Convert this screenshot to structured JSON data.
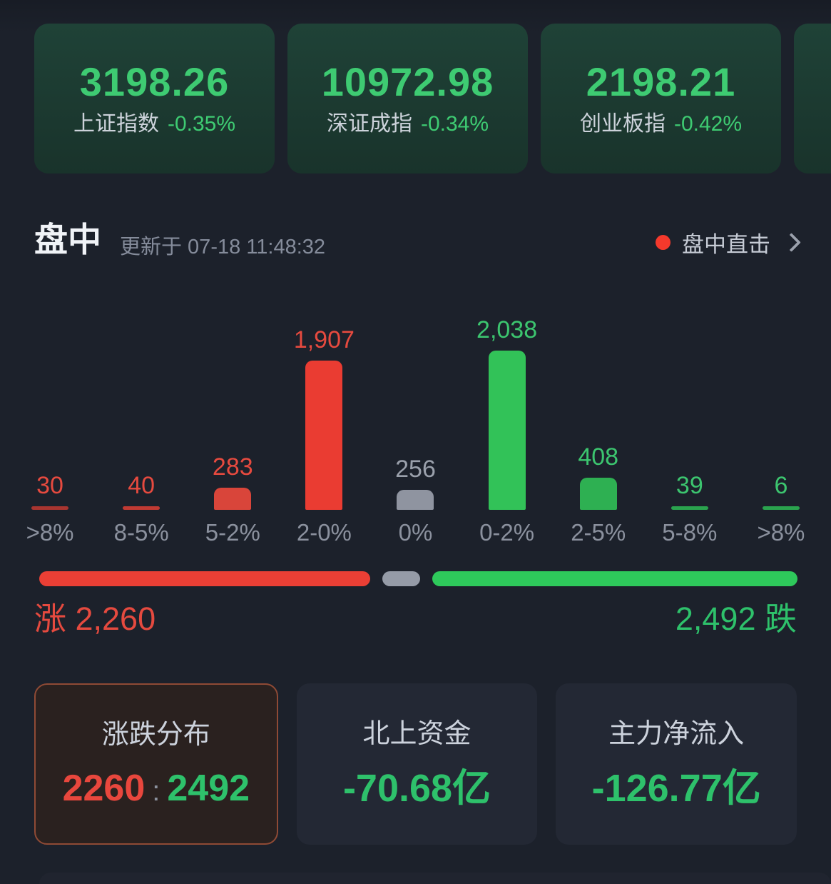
{
  "indices": {
    "cards": [
      {
        "value": "3198.26",
        "name": "上证指数",
        "change": "-0.35%"
      },
      {
        "value": "10972.98",
        "name": "深证成指",
        "change": "-0.34%"
      },
      {
        "value": "2198.21",
        "name": "创业板指",
        "change": "-0.42%"
      }
    ]
  },
  "section": {
    "title": "盘中",
    "updated": "更新于 07-18 11:48:32",
    "live_link": "盘中直击"
  },
  "chart_data": {
    "type": "bar",
    "title": "涨跌分布",
    "categories": [
      ">8%",
      "8-5%",
      "5-2%",
      "2-0%",
      "0%",
      "0-2%",
      "2-5%",
      "5-8%",
      ">8%"
    ],
    "values": [
      30,
      40,
      283,
      1907,
      256,
      2038,
      408,
      39,
      6
    ],
    "value_labels": [
      "30",
      "40",
      "283",
      "1,907",
      "256",
      "2,038",
      "408",
      "39",
      "6"
    ],
    "bar_colors": [
      "#a83530",
      "#c03a33",
      "#d9453a",
      "#ea3c32",
      "#8f94a0",
      "#32c258",
      "#2eb052",
      "#2aa34e",
      "#2aa34e"
    ],
    "label_colors": [
      "#e64a3f",
      "#e64a3f",
      "#e64a3f",
      "#e64a3f",
      "#9aa0ab",
      "#3cc56f",
      "#3cc56f",
      "#3cc56f",
      "#3cc56f"
    ],
    "ylim": [
      0,
      2100
    ],
    "grid": false,
    "legend": null
  },
  "ratio": {
    "up": 2260,
    "flat": 256,
    "down": 2492,
    "up_label": "涨 2,260",
    "down_label": "2,492 跌",
    "colors": {
      "up": "#ea3f35",
      "flat": "#959ba7",
      "down": "#2ec95b"
    }
  },
  "panels": [
    {
      "title": "涨跌分布",
      "up": "2260",
      "separator": ":",
      "down": "2492"
    },
    {
      "title": "北上资金",
      "value": "-70.68亿"
    },
    {
      "title": "主力净流入",
      "value": "-126.77亿"
    }
  ],
  "colors": {
    "page_bg": "#1c212b",
    "card_bg": "#1d3c31",
    "index_green": "#3ecb72",
    "up_red": "#e54a3f",
    "down_green": "#2ec16b",
    "flat_gray": "#8f94a0",
    "live_dot": "#f5392c",
    "selected_panel_border": "#8f4a35"
  }
}
